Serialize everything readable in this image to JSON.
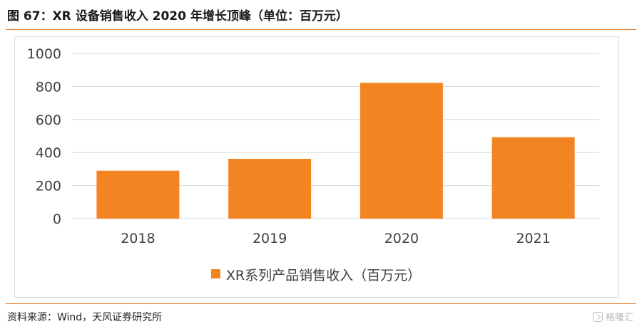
{
  "figure": {
    "title": "图 67：XR 设备销售收入 2020 年增长顶峰（单位：百万元）",
    "source": "资料来源：Wind，天风证券研究所",
    "watermark": "格隆汇"
  },
  "colors": {
    "bar": "#f28522",
    "accent_rule": "#e07b2a",
    "grid": "#d9d9d9",
    "tick_text": "#404040"
  },
  "chart_data": {
    "type": "bar",
    "title": "",
    "xlabel": "",
    "ylabel": "",
    "categories": [
      "2018",
      "2019",
      "2020",
      "2021"
    ],
    "series": [
      {
        "name": "XR系列产品销售收入（百万元）",
        "values": [
          290,
          362,
          822,
          493
        ]
      }
    ],
    "ylim": [
      0,
      1000
    ],
    "yticks": [
      0,
      200,
      400,
      600,
      800,
      1000
    ],
    "grid": true,
    "legend": "bottom-center"
  }
}
